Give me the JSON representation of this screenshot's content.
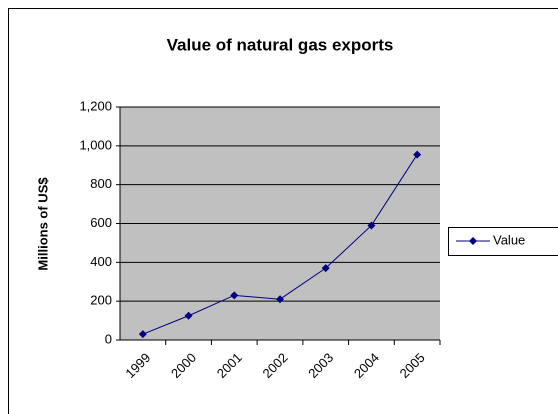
{
  "chart_data": {
    "type": "line",
    "title": "Value of natural gas exports",
    "y_label": "Millions of US$",
    "categories": [
      "1999",
      "2000",
      "2001",
      "2002",
      "2003",
      "2004",
      "2005"
    ],
    "series": [
      {
        "name": "Value",
        "color": "#000080",
        "values": [
          30,
          125,
          230,
          210,
          370,
          590,
          955
        ]
      }
    ],
    "ylim": [
      0,
      1200
    ],
    "yticks": [
      0,
      200,
      400,
      600,
      800,
      {
        "value": 1000,
        "label": "1,000"
      },
      {
        "value": 1200,
        "label": "1,200"
      }
    ],
    "grid": true,
    "legend": "right",
    "plot_background": "#c0c0c0"
  }
}
